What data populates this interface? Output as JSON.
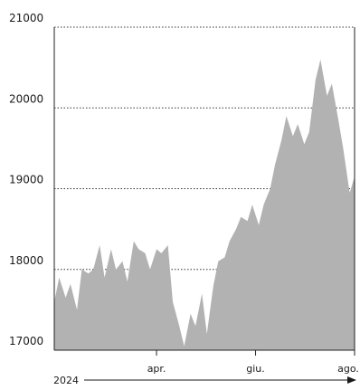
{
  "chart_data": {
    "type": "area",
    "area_color": "#b2b2b2",
    "ylim": [
      17000,
      21000
    ],
    "y_ticks": [
      "21000",
      "20000",
      "19000",
      "18000",
      "17000"
    ],
    "x_tick_labels": [
      "apr.",
      "giu.",
      "ago."
    ],
    "year_label": "2024",
    "grid": "dotted horizontal",
    "x": [
      "2024-01-29",
      "2024-02-01",
      "2024-02-05",
      "2024-02-08",
      "2024-02-12",
      "2024-02-15",
      "2024-02-19",
      "2024-02-22",
      "2024-02-26",
      "2024-02-29",
      "2024-03-04",
      "2024-03-07",
      "2024-03-11",
      "2024-03-14",
      "2024-03-18",
      "2024-03-21",
      "2024-03-25",
      "2024-03-28",
      "2024-04-01",
      "2024-04-04",
      "2024-04-08",
      "2024-04-11",
      "2024-04-15",
      "2024-04-18",
      "2024-04-22",
      "2024-04-25",
      "2024-04-29",
      "2024-05-02",
      "2024-05-06",
      "2024-05-09",
      "2024-05-13",
      "2024-05-16",
      "2024-05-20",
      "2024-05-23",
      "2024-05-27",
      "2024-05-30",
      "2024-06-03",
      "2024-06-06",
      "2024-06-10",
      "2024-06-13",
      "2024-06-17",
      "2024-06-20",
      "2024-06-24",
      "2024-06-27",
      "2024-07-01",
      "2024-07-04",
      "2024-07-08",
      "2024-07-11",
      "2024-07-15",
      "2024-07-18",
      "2024-07-22",
      "2024-07-25",
      "2024-07-29",
      "2024-08-01"
    ],
    "values": [
      17600,
      17900,
      17650,
      17820,
      17500,
      18000,
      17950,
      18000,
      18300,
      17900,
      18250,
      18000,
      18100,
      17850,
      18350,
      18250,
      18200,
      18000,
      18250,
      18200,
      18300,
      17600,
      17300,
      17050,
      17450,
      17300,
      17700,
      17200,
      17800,
      18100,
      18150,
      18350,
      18500,
      18650,
      18600,
      18800,
      18550,
      18800,
      19000,
      19300,
      19600,
      19900,
      19650,
      19800,
      19550,
      19700,
      20350,
      20600,
      20150,
      20300,
      19850,
      19500,
      18950,
      19150
    ]
  }
}
